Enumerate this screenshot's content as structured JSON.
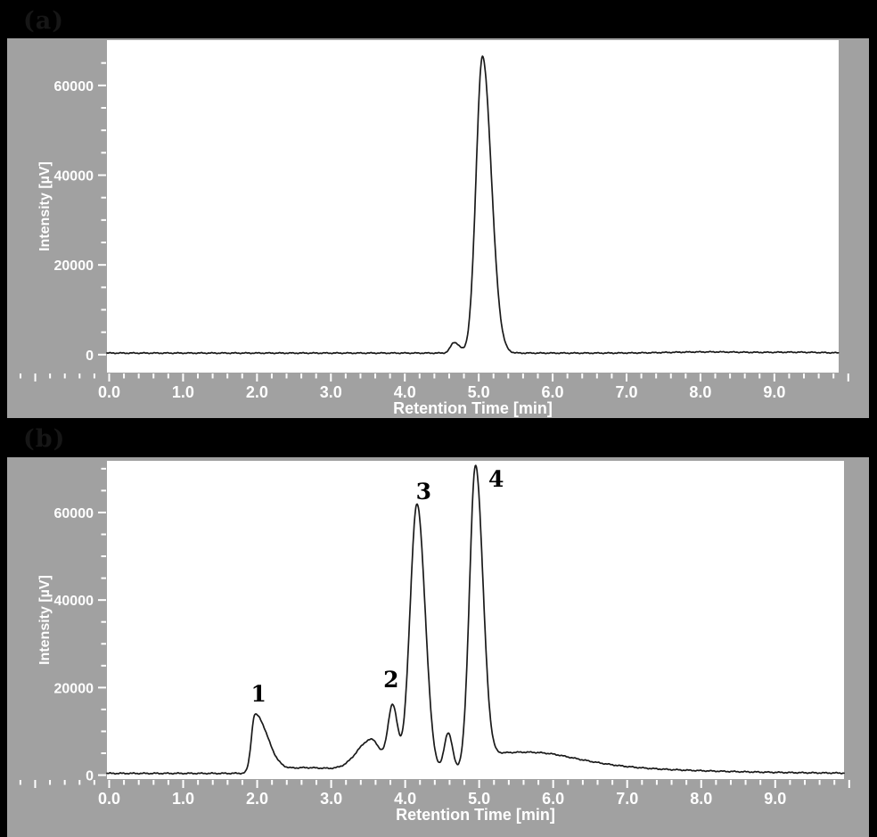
{
  "figure": {
    "type": "chromatogram-figure",
    "background_color": "#000000",
    "panel_background_color": "#a1a1a1",
    "plot_background_color": "#ffffff",
    "trace_color": "#1a1a1a",
    "axis_text_color": "#ffffff",
    "peak_label_color": "#000000"
  },
  "panels": [
    {
      "id": "a",
      "label": "(a)"
    },
    {
      "id": "b",
      "label": "(b)"
    }
  ],
  "chart_data": [
    {
      "type": "line",
      "panel": "a",
      "title": "",
      "xlabel": "Retention Time [min]",
      "ylabel": "Intensity [µV]",
      "xlim": [
        -0.03,
        9.87
      ],
      "ylim": [
        -4000,
        70100
      ],
      "x_tick_values": [
        0,
        1,
        2,
        3,
        4,
        5,
        6,
        7,
        8,
        9
      ],
      "x_tick_labels": [
        "0.0",
        "1.0",
        "2.0",
        "3.0",
        "4.0",
        "5.0",
        "6.0",
        "7.0",
        "8.0",
        "9.0"
      ],
      "x_minor_step": 0.2,
      "y_tick_values": [
        0,
        20000,
        40000,
        60000
      ],
      "y_tick_labels": [
        "0",
        "20000",
        "40000",
        "60000"
      ],
      "y_minor_step": 5000,
      "grid": false,
      "legend": "none",
      "baseline_uv": 350,
      "noise_uv": [
        70,
        50
      ],
      "peaks": [
        {
          "name": "minor-impurity-peak",
          "rt_min": 4.67,
          "height_uv": 2400,
          "sigma_left": 0.05,
          "sigma_right": 0.07
        },
        {
          "name": "main-peak",
          "rt_min": 5.05,
          "height_uv": 66100,
          "sigma_left": 0.085,
          "sigma_right": 0.12
        },
        {
          "name": "baseline-drift-1",
          "rt_min": 8.1,
          "height_uv": 260,
          "sigma_left": 0.5,
          "sigma_right": 0.5
        },
        {
          "name": "baseline-drift-2",
          "rt_min": 9.3,
          "height_uv": 180,
          "sigma_left": 0.35,
          "sigma_right": 0.35
        }
      ],
      "peak_labels": [],
      "peaks_summary": [
        {
          "peak": "minor",
          "rt_min": 4.67,
          "apex_intensity_uv": 2800
        },
        {
          "peak": "main",
          "rt_min": 5.05,
          "apex_intensity_uv": 66500
        }
      ]
    },
    {
      "type": "line",
      "panel": "b",
      "title": "",
      "xlabel": "Retention Time [min]",
      "ylabel": "Intensity [µV]",
      "xlim": [
        -0.03,
        9.93
      ],
      "ylim": [
        -900,
        71800
      ],
      "x_tick_values": [
        0,
        1,
        2,
        3,
        4,
        5,
        6,
        7,
        8,
        9
      ],
      "x_tick_labels": [
        "0.0",
        "1.0",
        "2.0",
        "3.0",
        "4.0",
        "5.0",
        "6.0",
        "7.0",
        "8.0",
        "9.0"
      ],
      "x_minor_step": 0.2,
      "y_tick_values": [
        0,
        20000,
        40000,
        60000
      ],
      "y_tick_labels": [
        "0",
        "20000",
        "40000",
        "60000"
      ],
      "y_minor_step": 5000,
      "grid": false,
      "legend": "none",
      "baseline_uv": 400,
      "noise_uv": [
        80,
        60
      ],
      "peaks": [
        {
          "name": "peak-1",
          "rt_min": 1.97,
          "height_uv": 13400,
          "sigma_left": 0.048,
          "sigma_right": 0.17
        },
        {
          "name": "peak-1-tail",
          "rt_min": 2.65,
          "height_uv": 1300,
          "sigma_left": 0.3,
          "sigma_right": 0.5
        },
        {
          "name": "peak-2-shoulder",
          "rt_min": 3.55,
          "height_uv": 7500,
          "sigma_left": 0.2,
          "sigma_right": 0.12
        },
        {
          "name": "peak-2",
          "rt_min": 3.83,
          "height_uv": 15000,
          "sigma_left": 0.065,
          "sigma_right": 0.07
        },
        {
          "name": "peak-3",
          "rt_min": 4.16,
          "height_uv": 61500,
          "sigma_left": 0.095,
          "sigma_right": 0.11
        },
        {
          "name": "interpeak-bump",
          "rt_min": 4.58,
          "height_uv": 9000,
          "sigma_left": 0.055,
          "sigma_right": 0.06
        },
        {
          "name": "peak-4",
          "rt_min": 4.95,
          "height_uv": 68500,
          "sigma_left": 0.08,
          "sigma_right": 0.1
        },
        {
          "name": "peak-4-tail",
          "rt_min": 5.35,
          "height_uv": 4500,
          "sigma_left": 0.3,
          "sigma_right": 0.8
        },
        {
          "name": "late-baseline-hump",
          "rt_min": 6.1,
          "height_uv": 1200,
          "sigma_left": 0.4,
          "sigma_right": 1.6
        }
      ],
      "peak_labels": [
        {
          "text": "1",
          "t": 2.02,
          "v": 16800
        },
        {
          "text": "2",
          "t": 3.81,
          "v": 20100
        },
        {
          "text": "3",
          "t": 4.25,
          "v": 63000
        },
        {
          "text": "4",
          "t": 5.23,
          "v": 65900
        }
      ],
      "peaks_summary": [
        {
          "peak": "1",
          "rt_min": 1.97,
          "apex_intensity_uv": 14000
        },
        {
          "peak": "2",
          "rt_min": 3.83,
          "apex_intensity_uv": 16900
        },
        {
          "peak": "3",
          "rt_min": 4.16,
          "apex_intensity_uv": 62400
        },
        {
          "peak": "4",
          "rt_min": 4.95,
          "apex_intensity_uv": 69300
        }
      ]
    }
  ]
}
